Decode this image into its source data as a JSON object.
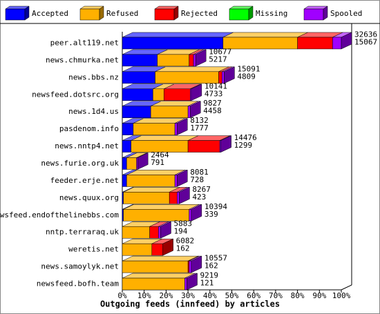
{
  "chart_data": {
    "type": "stacked-bar-3d",
    "orientation": "horizontal",
    "title": "Outgoing feeds (innfeed) by articles",
    "categories": [
      "peer.alt119.net",
      "news.chmurka.net",
      "news.bbs.nz",
      "newsfeed.dotsrc.org",
      "news.1d4.us",
      "pasdenom.info",
      "news.nntp4.net",
      "news.furie.org.uk",
      "feeder.erje.net",
      "news.quux.org",
      "newsfeed.endofthelinebbs.com",
      "nntp.terraraq.uk",
      "weretis.net",
      "news.samoylyk.net",
      "newsfeed.bofh.team"
    ],
    "series": [
      {
        "name": "Accepted",
        "color": "#0000ff",
        "values": [
          46,
          16,
          15,
          14,
          13,
          5,
          4,
          2,
          2,
          0.5,
          0.5,
          0,
          0,
          0,
          0
        ]
      },
      {
        "name": "Refused",
        "color": "#ffb000",
        "values": [
          34,
          14.5,
          29,
          5,
          17,
          19,
          26,
          4.5,
          22,
          21,
          30,
          12.5,
          13.5,
          30,
          28.5
        ]
      },
      {
        "name": "Rejected",
        "color": "#ff0000",
        "values": [
          16,
          2,
          1.5,
          12,
          0,
          0,
          14.5,
          0,
          0,
          3.5,
          0,
          4,
          5,
          0.5,
          0
        ]
      },
      {
        "name": "Missing",
        "color": "#00ff00",
        "values": [
          0,
          0,
          0,
          0,
          0,
          0,
          0,
          0,
          0,
          0,
          0,
          0,
          0,
          0,
          0
        ]
      },
      {
        "name": "Spooled",
        "color": "#a000ff",
        "values": [
          4,
          1,
          1,
          0.5,
          1,
          1,
          0.5,
          0.5,
          1,
          1,
          1,
          1,
          0,
          1,
          1
        ]
      }
    ],
    "offered": [
      32636,
      10677,
      15091,
      10141,
      9827,
      8132,
      14476,
      2464,
      8081,
      8267,
      10394,
      5883,
      6082,
      10557,
      9219
    ],
    "accepted_count": [
      15067,
      5217,
      4809,
      4733,
      4458,
      1777,
      1299,
      791,
      728,
      423,
      339,
      194,
      162,
      162,
      121
    ],
    "xlim": [
      0,
      100
    ],
    "xticks": [
      {
        "value": 0,
        "label": "0%"
      },
      {
        "value": 10,
        "label": "10%"
      },
      {
        "value": 20,
        "label": "20%"
      },
      {
        "value": 30,
        "label": "30%"
      },
      {
        "value": 40,
        "label": "40%"
      },
      {
        "value": 50,
        "label": "50%"
      },
      {
        "value": 60,
        "label": "60%"
      },
      {
        "value": 70,
        "label": "70%"
      },
      {
        "value": 80,
        "label": "80%"
      },
      {
        "value": 90,
        "label": "90%"
      },
      {
        "value": 100,
        "label": "100%"
      }
    ]
  }
}
